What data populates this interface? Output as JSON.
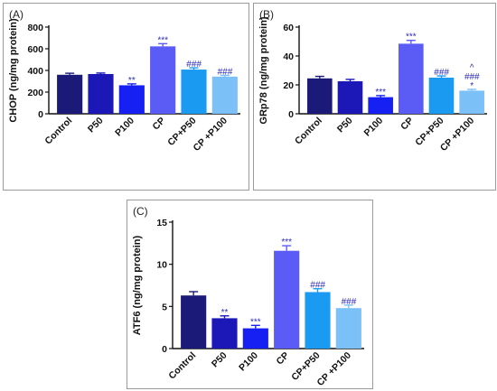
{
  "chart_data": [
    {
      "type": "bar",
      "panel_label": "(A)",
      "title": "",
      "xlabel": "",
      "ylabel": "CHOP (ng/mg protein)",
      "ylim": [
        0,
        800
      ],
      "yticks": [
        "0",
        "200",
        "400",
        "600",
        "800"
      ],
      "categories": [
        "Control",
        "P50",
        "P100",
        "CP",
        "CP+P50",
        "CP +P100"
      ],
      "values": [
        360,
        367,
        263,
        622,
        408,
        343
      ],
      "errors": [
        14,
        9,
        13,
        25,
        16,
        12
      ],
      "colors": [
        "#1b1a78",
        "#1c18b8",
        "#1720f2",
        "#5b5bf6",
        "#1b9af2",
        "#7cc0f8"
      ],
      "annotations": [
        [],
        [],
        [
          "**"
        ],
        [
          "***"
        ],
        [
          "###"
        ],
        [
          "###"
        ]
      ]
    },
    {
      "type": "bar",
      "panel_label": "(B)",
      "title": "",
      "xlabel": "",
      "ylabel": "GRp78 (ng/mg protein)",
      "ylim": [
        0,
        60
      ],
      "yticks": [
        "0",
        "20",
        "40",
        "60"
      ],
      "categories": [
        "Control",
        "P50",
        "P100",
        "CP",
        "CP+P50",
        "CP +P100"
      ],
      "values": [
        24.5,
        22.5,
        11.5,
        48.5,
        25,
        16
      ],
      "errors": [
        1.4,
        1.3,
        1.1,
        2.3,
        1.2,
        0.9
      ],
      "colors": [
        "#1b1a78",
        "#1c18b8",
        "#1720f2",
        "#5b5bf6",
        "#1b9af2",
        "#7cc0f8"
      ],
      "annotations": [
        [],
        [],
        [
          "***"
        ],
        [
          "***"
        ],
        [
          "###"
        ],
        [
          "*",
          "###",
          "^"
        ]
      ]
    },
    {
      "type": "bar",
      "panel_label": "(C)",
      "title": "",
      "xlabel": "",
      "ylabel": "ATF6 (ng/mg protein)",
      "ylim": [
        0,
        15
      ],
      "yticks": [
        "0",
        "5",
        "10",
        "15"
      ],
      "categories": [
        "Control",
        "P50",
        "P100",
        "CP",
        "CP+P50",
        "CP +P100"
      ],
      "values": [
        6.3,
        3.6,
        2.4,
        11.6,
        6.7,
        4.8
      ],
      "errors": [
        0.45,
        0.28,
        0.35,
        0.6,
        0.4,
        0.35
      ],
      "colors": [
        "#1b1a78",
        "#1c18b8",
        "#1720f2",
        "#5b5bf6",
        "#1b9af2",
        "#7cc0f8"
      ],
      "annotations": [
        [],
        [
          "**"
        ],
        [
          "***"
        ],
        [
          "***"
        ],
        [
          "###"
        ],
        [
          "###"
        ]
      ]
    }
  ]
}
